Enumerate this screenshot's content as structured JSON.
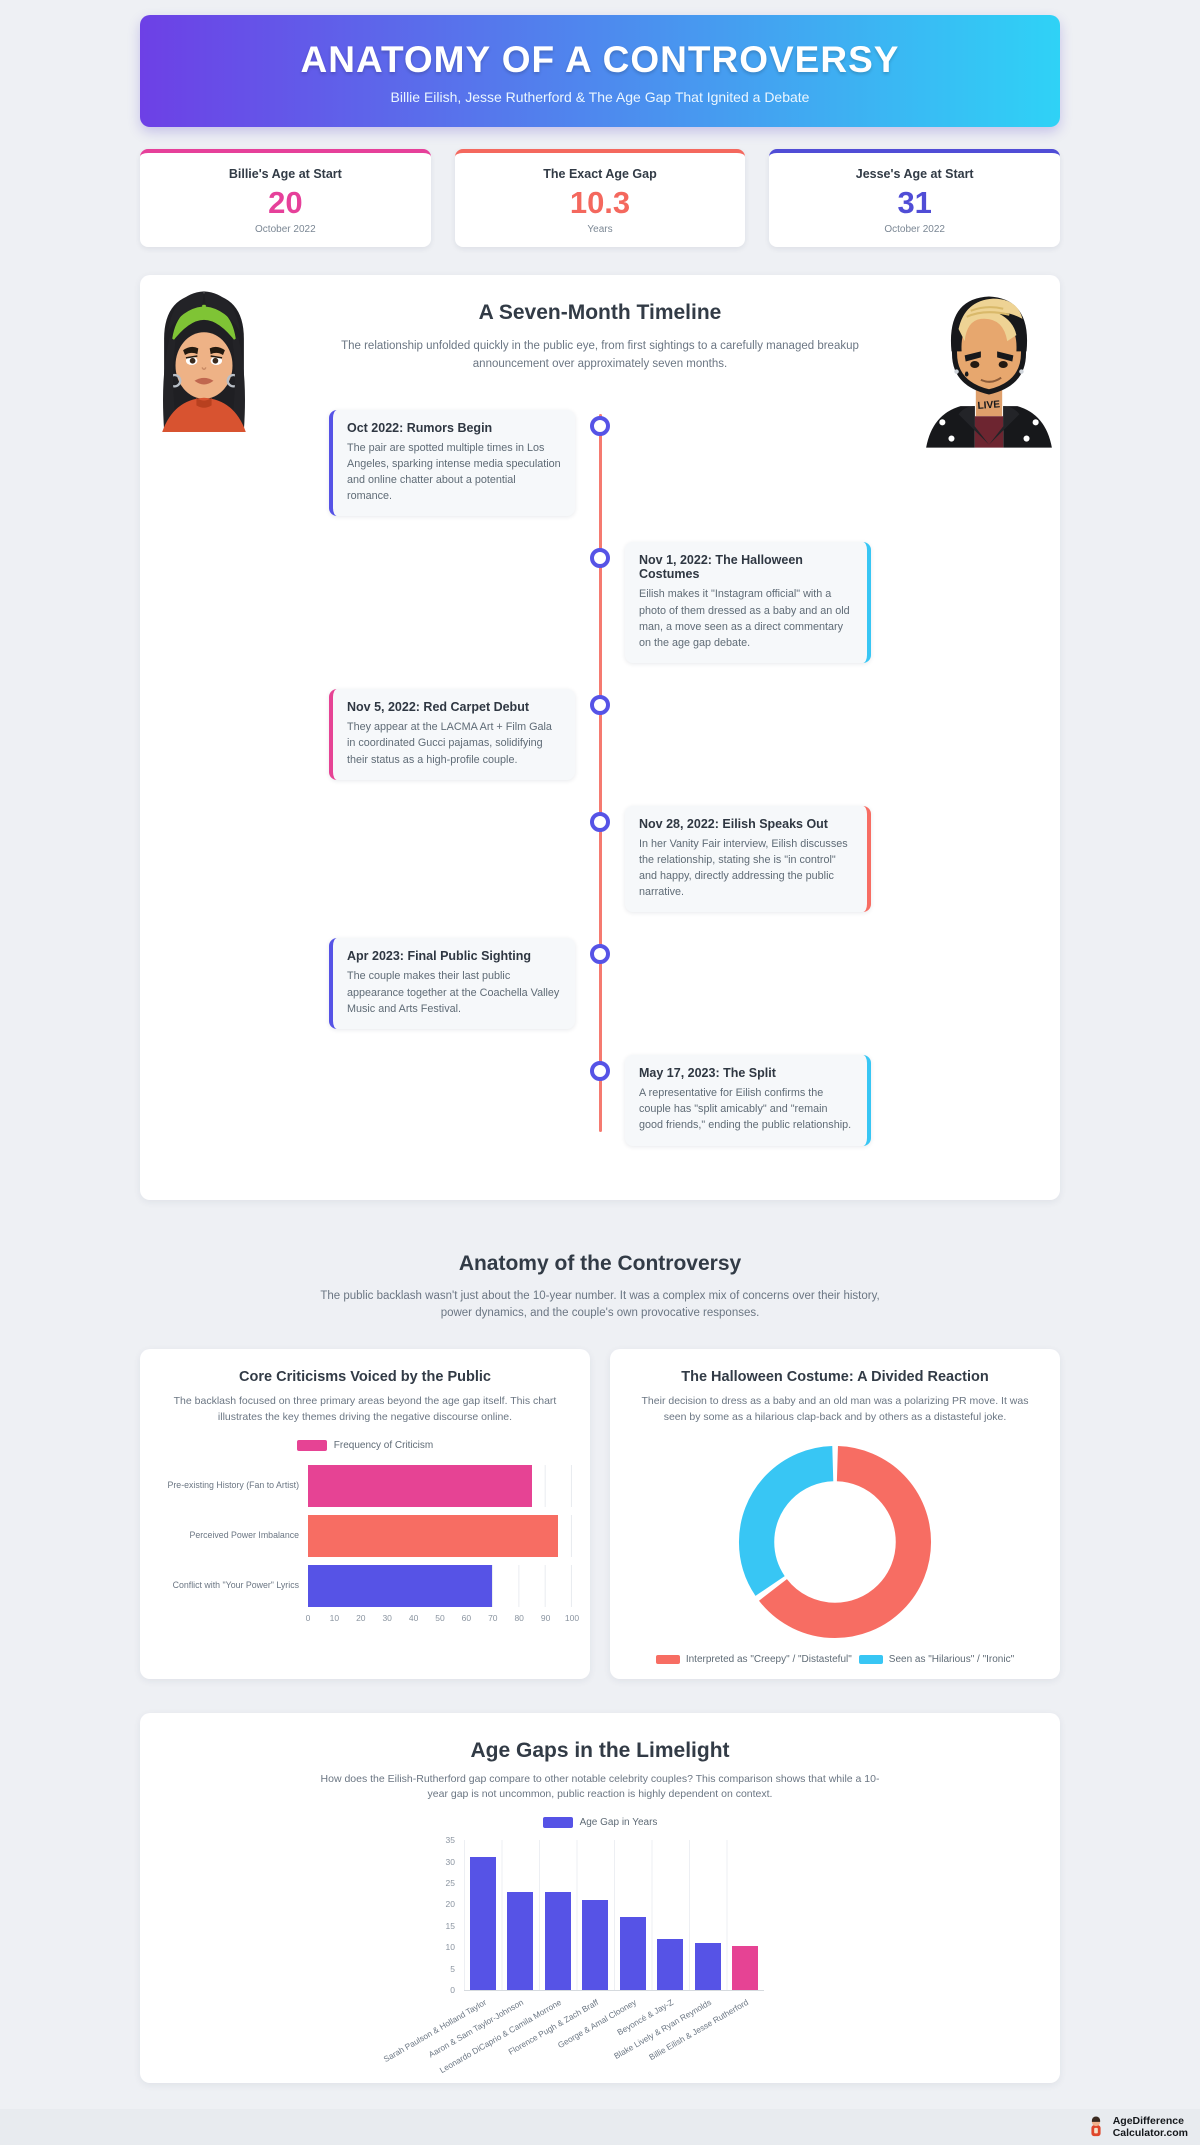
{
  "header": {
    "title": "ANATOMY OF A CONTROVERSY",
    "subtitle": "Billie Eilish, Jesse Rutherford & The Age Gap That Ignited a Debate"
  },
  "stats": [
    {
      "label": "Billie's Age at Start",
      "value": "20",
      "caption": "October 2022",
      "color": "#e6409a"
    },
    {
      "label": "The Exact Age Gap",
      "value": "10.3",
      "caption": "Years",
      "color": "#f4685e"
    },
    {
      "label": "Jesse's Age at Start",
      "value": "31",
      "caption": "October 2022",
      "color": "#504dd6"
    }
  ],
  "timeline": {
    "title": "A Seven-Month Timeline",
    "description": "The relationship unfolded quickly in the public eye, from first sightings to a carefully managed breakup announcement over approximately seven months.",
    "events": [
      {
        "side": "left",
        "accent": "#5653e6",
        "title": "Oct 2022: Rumors Begin",
        "text": "The pair are spotted multiple times in Los Angeles, sparking intense media speculation and online chatter about a potential romance."
      },
      {
        "side": "right",
        "accent": "#38c6f4",
        "title": "Nov 1, 2022: The Halloween Costumes",
        "text": "Eilish makes it \"Instagram official\" with a photo of them dressed as a baby and an old man, a move seen as a direct commentary on the age gap debate."
      },
      {
        "side": "left",
        "accent": "#e64394",
        "title": "Nov 5, 2022: Red Carpet Debut",
        "text": "They appear at the LACMA Art + Film Gala in coordinated Gucci pajamas, solidifying their status as a high-profile couple."
      },
      {
        "side": "right",
        "accent": "#f76d63",
        "title": "Nov 28, 2022: Eilish Speaks Out",
        "text": "In her Vanity Fair interview, Eilish discusses the relationship, stating she is \"in control\" and happy, directly addressing the public narrative."
      },
      {
        "side": "left",
        "accent": "#5653e6",
        "title": "Apr 2023: Final Public Sighting",
        "text": "The couple makes their last public appearance together at the Coachella Valley Music and Arts Festival."
      },
      {
        "side": "right",
        "accent": "#38c6f4",
        "title": "May 17, 2023: The Split",
        "text": "A representative for Eilish confirms the couple has \"split amicably\" and \"remain good friends,\" ending the public relationship."
      }
    ]
  },
  "controversy": {
    "title": "Anatomy of the Controversy",
    "description": "The public backlash wasn't just about the 10-year number. It was a complex mix of concerns over their history, power dynamics, and the couple's own provocative responses."
  },
  "chart_data": [
    {
      "type": "bar",
      "orientation": "horizontal",
      "title": "Core Criticisms Voiced by the Public",
      "subtitle": "The backlash focused on three primary areas beyond the age gap itself. This chart illustrates the key themes driving the negative discourse online.",
      "legend": "Frequency of Criticism",
      "legend_color": "#e64394",
      "categories": [
        "Pre-existing History (Fan to Artist)",
        "Perceived Power Imbalance",
        "Conflict with \"Your Power\" Lyrics"
      ],
      "values": [
        85,
        95,
        70
      ],
      "colors": [
        "#e64394",
        "#f76d63",
        "#5653e6"
      ],
      "xlim": [
        0,
        100
      ],
      "x_ticks": [
        0,
        10,
        20,
        30,
        40,
        50,
        60,
        70,
        80,
        90,
        100
      ],
      "grid": true
    },
    {
      "type": "pie",
      "subtype": "donut",
      "title": "The Halloween Costume: A Divided Reaction",
      "subtitle": "Their decision to dress as a baby and an old man was a polarizing PR move. It was seen by some as a hilarious clap-back and by others as a distasteful joke.",
      "legend_position": "bottom",
      "slices": [
        {
          "label": "Interpreted as \"Creepy\" / \"Distasteful\"",
          "value": 65,
          "color": "#f76d63"
        },
        {
          "label": "Seen as \"Hilarious\" / \"Ironic\"",
          "value": 35,
          "color": "#38c6f4"
        }
      ]
    },
    {
      "type": "bar",
      "orientation": "vertical",
      "title": "Age Gaps in the Limelight",
      "subtitle": "How does the Eilish-Rutherford gap compare to other notable celebrity couples? This comparison shows that while a 10-year gap is not uncommon, public reaction is highly dependent on context.",
      "legend": "Age Gap in Years",
      "legend_color": "#5653e6",
      "categories": [
        "Sarah Paulson & Holland Taylor",
        "Aaron & Sam Taylor-Johnson",
        "Leonardo DiCaprio & Camila Morrone",
        "Florence Pugh & Zach Braff",
        "George & Amal Clooney",
        "Beyoncé & Jay-Z",
        "Blake Lively & Ryan Reynolds",
        "Billie Eilish & Jesse Rutherford"
      ],
      "values": [
        31,
        23,
        23,
        21,
        17,
        12,
        11,
        10.3
      ],
      "colors": [
        "#5653e6",
        "#5653e6",
        "#5653e6",
        "#5653e6",
        "#5653e6",
        "#5653e6",
        "#5653e6",
        "#e64394"
      ],
      "ylim": [
        0,
        35
      ],
      "y_ticks": [
        0,
        5,
        10,
        15,
        20,
        25,
        30,
        35
      ],
      "grid": true
    }
  ],
  "footer": {
    "brand_line1": "AgeDifference",
    "brand_line2": "Calculator.com"
  }
}
